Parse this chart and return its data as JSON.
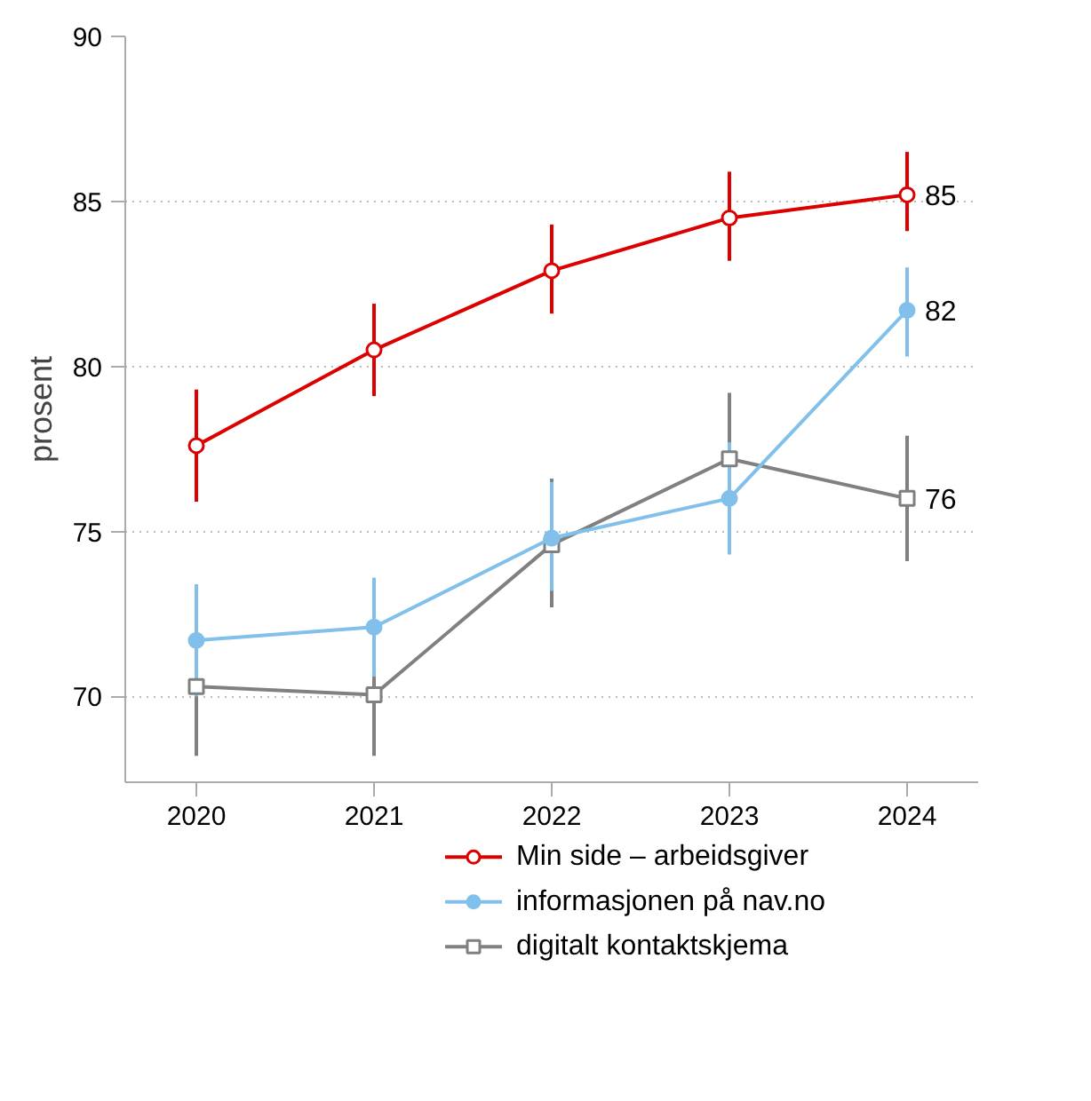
{
  "chart_data": {
    "type": "line",
    "ylabel": "prosent",
    "x": [
      2020,
      2021,
      2022,
      2023,
      2024
    ],
    "xlim": [
      2019.6,
      2024.4
    ],
    "xticks": [
      2020,
      2021,
      2022,
      2023,
      2024
    ],
    "ylim": [
      67.4,
      90
    ],
    "yticks": [
      70,
      75,
      80,
      85,
      90
    ],
    "grid": "y",
    "legend": "bottom",
    "line_style": "solid",
    "series": [
      {
        "name": "Min side – arbeidsgiver",
        "color": "#dd0000",
        "marker": "circle",
        "values": [
          77.6,
          80.5,
          82.9,
          84.5,
          85.2
        ],
        "errors": [
          [
            75.9,
            79.3
          ],
          [
            79.1,
            81.9
          ],
          [
            81.6,
            84.3
          ],
          [
            83.2,
            85.9
          ],
          [
            84.1,
            86.5
          ]
        ],
        "value_labels": [
          null,
          null,
          null,
          null,
          "85"
        ]
      },
      {
        "name": "informasjonen på nav.no",
        "color": "#80c0ea",
        "marker": "circle",
        "values": [
          71.7,
          72.1,
          74.8,
          76.0,
          81.7
        ],
        "errors": [
          [
            70.0,
            73.4
          ],
          [
            70.6,
            73.6
          ],
          [
            73.2,
            76.5
          ],
          [
            74.3,
            77.7
          ],
          [
            80.3,
            83.0
          ]
        ],
        "value_labels": [
          null,
          null,
          null,
          null,
          "82"
        ]
      },
      {
        "name": "digitalt kontaktskjema",
        "color": "#808080",
        "marker": "square",
        "values": [
          70.3,
          70.05,
          74.6,
          77.2,
          76.0
        ],
        "errors": [
          [
            68.2,
            72.4
          ],
          [
            68.2,
            72.0
          ],
          [
            72.7,
            76.6
          ],
          [
            75.1,
            79.2
          ],
          [
            74.1,
            77.9
          ]
        ],
        "value_labels": [
          null,
          null,
          null,
          null,
          "76"
        ]
      }
    ]
  }
}
